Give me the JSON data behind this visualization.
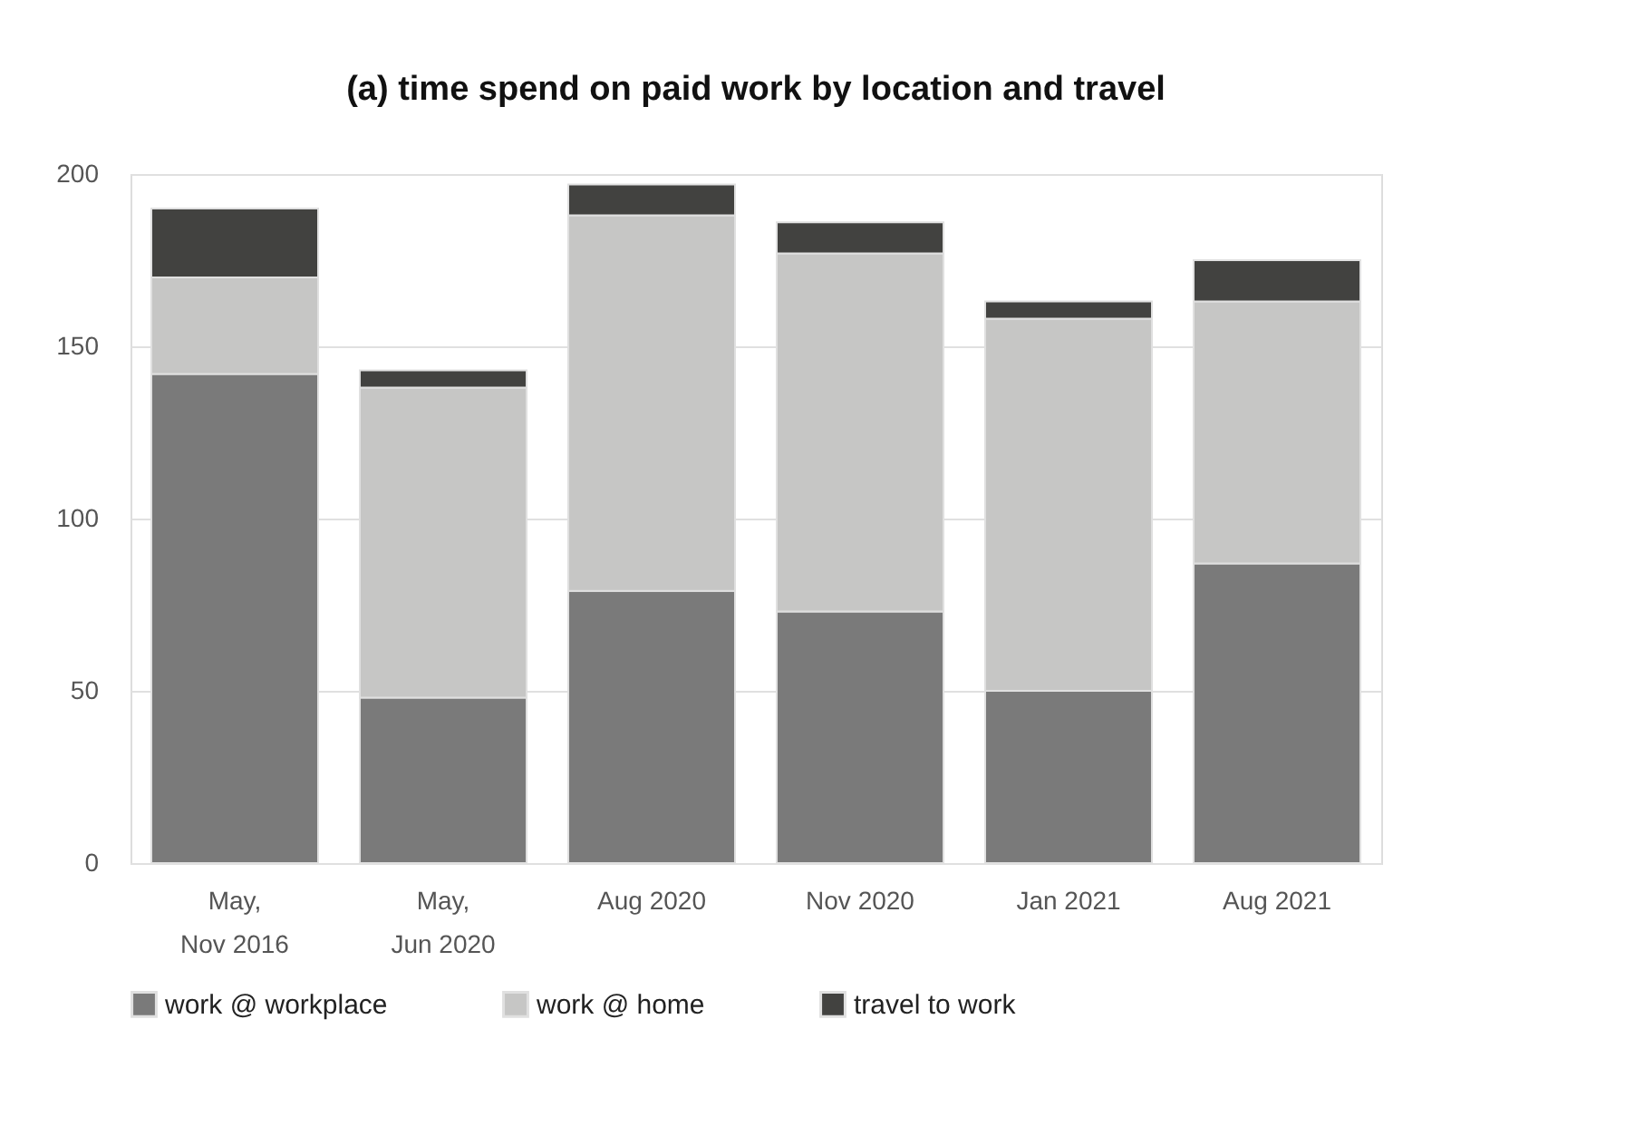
{
  "chart_data": {
    "type": "bar",
    "title": "(a) time spend on paid work by location and travel",
    "categories": [
      "May,\nNov 2016",
      "May,\nJun 2020",
      "Aug 2020",
      "Nov 2020",
      "Jan 2021",
      "Aug 2021"
    ],
    "stacked": true,
    "series": [
      {
        "name": "work @ workplace",
        "color": "#7a7a7a",
        "values": [
          142,
          48,
          79,
          73,
          50,
          87
        ]
      },
      {
        "name": "work @ home",
        "color": "#c6c6c5",
        "values": [
          28,
          90,
          109,
          104,
          108,
          76
        ]
      },
      {
        "name": "travel to work",
        "color": "#424240",
        "values": [
          20,
          5,
          9,
          9,
          5,
          12
        ]
      }
    ],
    "ylim": [
      0,
      200
    ],
    "yticks": [
      0,
      50,
      100,
      150,
      200
    ],
    "grid": "y",
    "legend": "bottom"
  }
}
